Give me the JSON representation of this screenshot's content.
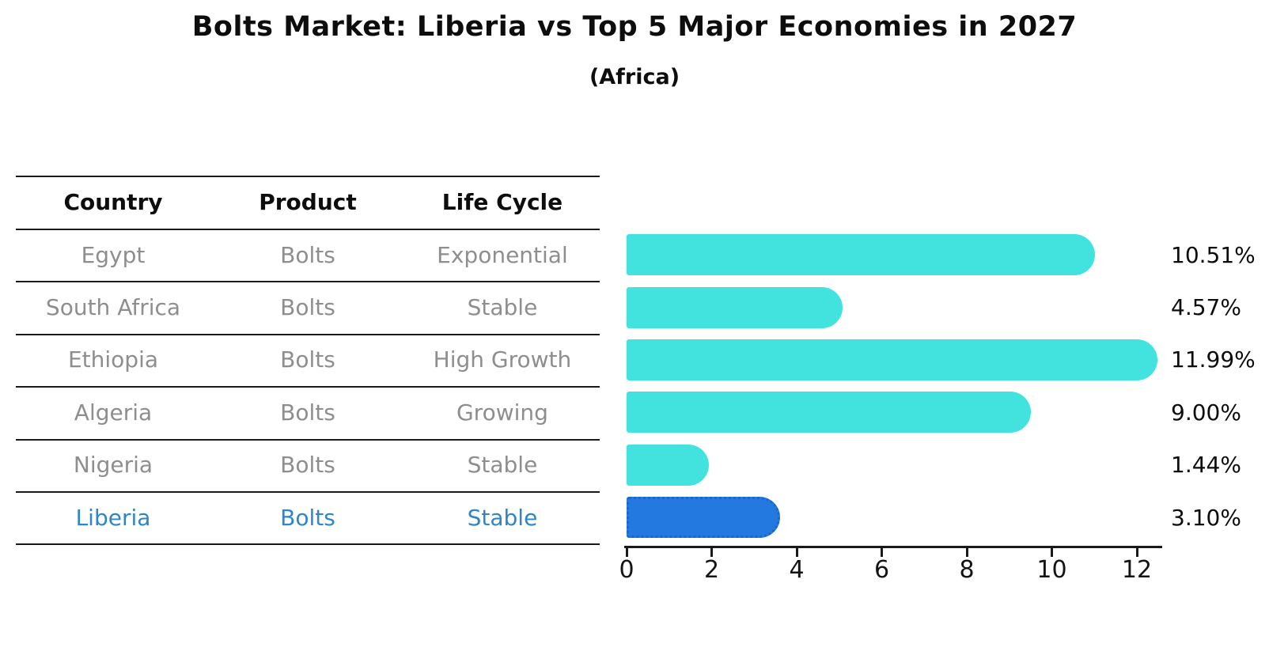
{
  "title": "Bolts Market: Liberia vs Top 5 Major Economies in 2027",
  "subtitle": "(Africa)",
  "table": {
    "headers": [
      "Country",
      "Product",
      "Life Cycle"
    ],
    "rows": [
      {
        "country": "Egypt",
        "product": "Bolts",
        "life_cycle": "Exponential",
        "highlight": false
      },
      {
        "country": "South Africa",
        "product": "Bolts",
        "life_cycle": "Stable",
        "highlight": false
      },
      {
        "country": "Ethiopia",
        "product": "Bolts",
        "life_cycle": "High Growth",
        "highlight": false
      },
      {
        "country": "Algeria",
        "product": "Bolts",
        "life_cycle": "Growing",
        "highlight": false
      },
      {
        "country": "Nigeria",
        "product": "Bolts",
        "life_cycle": "Stable",
        "highlight": false
      },
      {
        "country": "Liberia",
        "product": "Bolts",
        "life_cycle": "Stable",
        "highlight": true
      }
    ]
  },
  "chart_data": {
    "type": "bar",
    "orientation": "horizontal",
    "title": "Bolts Market: Liberia vs Top 5 Major Economies in 2027",
    "subtitle": "(Africa)",
    "categories": [
      "Egypt",
      "South Africa",
      "Ethiopia",
      "Algeria",
      "Nigeria",
      "Liberia"
    ],
    "values": [
      10.51,
      4.57,
      11.99,
      9.0,
      1.44,
      3.1
    ],
    "value_labels": [
      "10.51%",
      "4.57%",
      "11.99%",
      "9.00%",
      "1.44%",
      "3.10%"
    ],
    "x_ticks": [
      0,
      2,
      4,
      6,
      8,
      10,
      12
    ],
    "xlim": [
      0,
      12.6
    ],
    "xlabel": "",
    "ylabel": "",
    "grid": false,
    "legend": false,
    "highlight_index": 5,
    "highlight_category": "Liberia"
  },
  "colors": {
    "bar": "#42E3DE",
    "highlight_bar": "#2379E0",
    "highlight_bar_border": "#1A67CC",
    "highlight_text": "#2E86C9",
    "muted_text": "#8E8E8E",
    "text": "#0D0D0D",
    "line": "#1A1A1A"
  }
}
